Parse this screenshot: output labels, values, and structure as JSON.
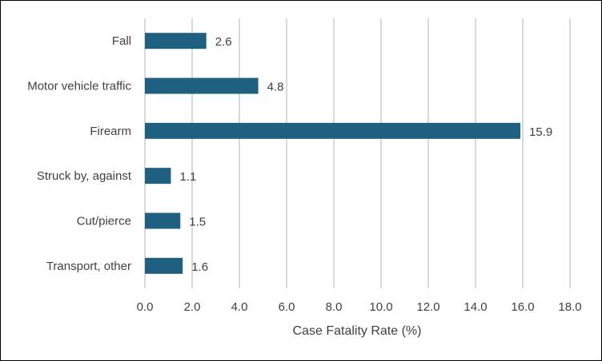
{
  "chart_data": {
    "type": "bar",
    "orientation": "horizontal",
    "categories": [
      "Fall",
      "Motor vehicle traffic",
      "Firearm",
      "Struck by, against",
      "Cut/pierce",
      "Transport, other"
    ],
    "values": [
      2.6,
      4.8,
      15.9,
      1.1,
      1.5,
      1.6
    ],
    "value_labels": [
      "2.6",
      "4.8",
      "15.9",
      "1.1",
      "1.5",
      "1.6"
    ],
    "title": "",
    "xlabel": "Case Fatality Rate (%)",
    "ylabel": "",
    "xlim": [
      0,
      18
    ],
    "x_ticks": [
      0,
      2,
      4,
      6,
      8,
      10,
      12,
      14,
      16,
      18
    ],
    "x_tick_labels": [
      "0.0",
      "2.0",
      "4.0",
      "6.0",
      "8.0",
      "10.0",
      "12.0",
      "14.0",
      "16.0",
      "18.0"
    ],
    "grid": "vertical",
    "legend": "none",
    "bar_color": "#1f5f80",
    "grid_color": "#d9d9d9"
  }
}
